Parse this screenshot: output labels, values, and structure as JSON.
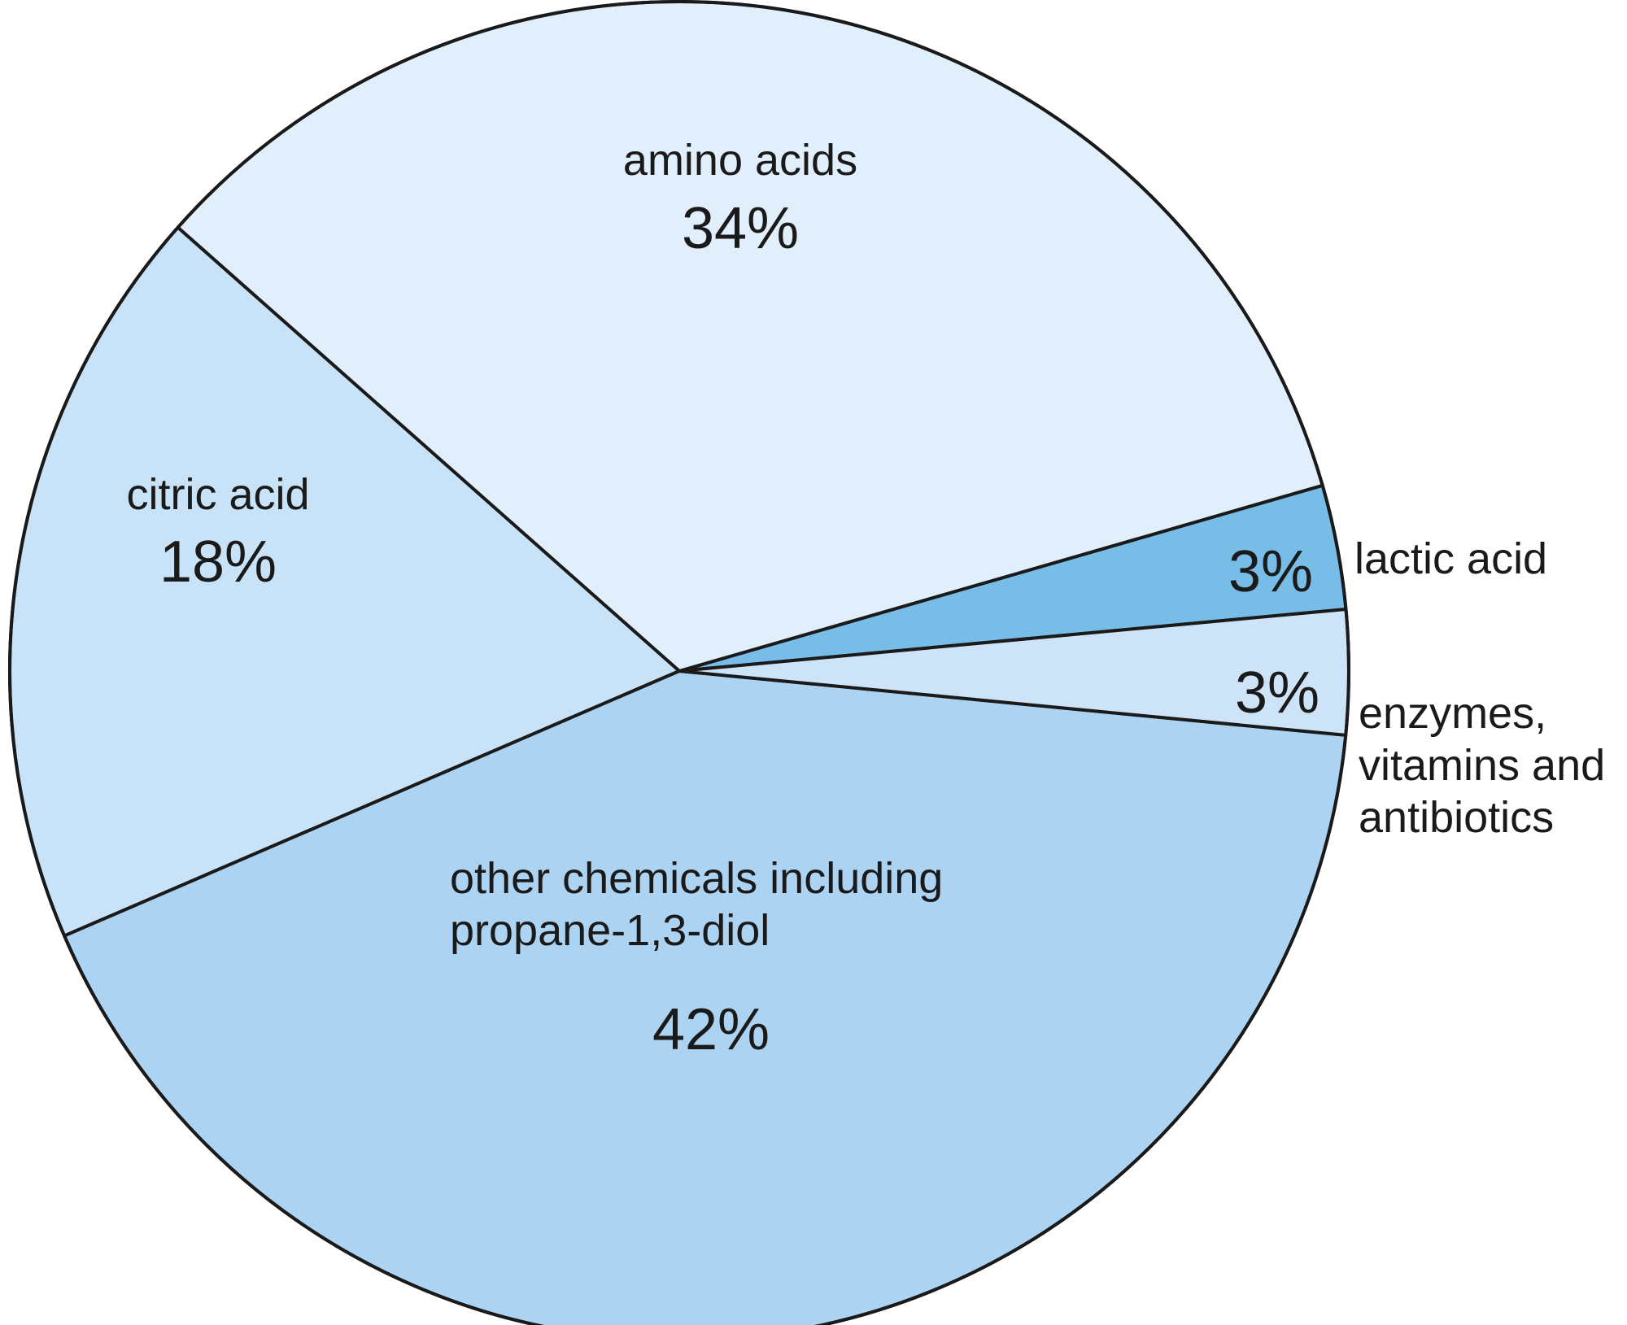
{
  "chart_data": {
    "type": "pie",
    "unit": "%",
    "slices": [
      {
        "name": "lactic acid",
        "label_lines": [
          "lactic acid"
        ],
        "value": 3,
        "value_label": "3%",
        "color": "#78BCE8"
      },
      {
        "name": "amino acids",
        "label_lines": [
          "amino acids"
        ],
        "value": 34,
        "value_label": "34%",
        "color": "#E1EEFB"
      },
      {
        "name": "citric acid",
        "label_lines": [
          "citric acid"
        ],
        "value": 18,
        "value_label": "18%",
        "color": "#C8E2F7"
      },
      {
        "name": "other chemicals including propane-1,3-diol",
        "label_lines": [
          "other chemicals including",
          "propane-1,3-diol"
        ],
        "value": 42,
        "value_label": "42%",
        "color": "#ACD3F2"
      },
      {
        "name": "enzymes, vitamins and antibiotics",
        "label_lines": [
          "enzymes,",
          "vitamins and",
          "antibiotics"
        ],
        "value": 3,
        "value_label": "3%",
        "color": "#CDE4F8"
      }
    ]
  }
}
